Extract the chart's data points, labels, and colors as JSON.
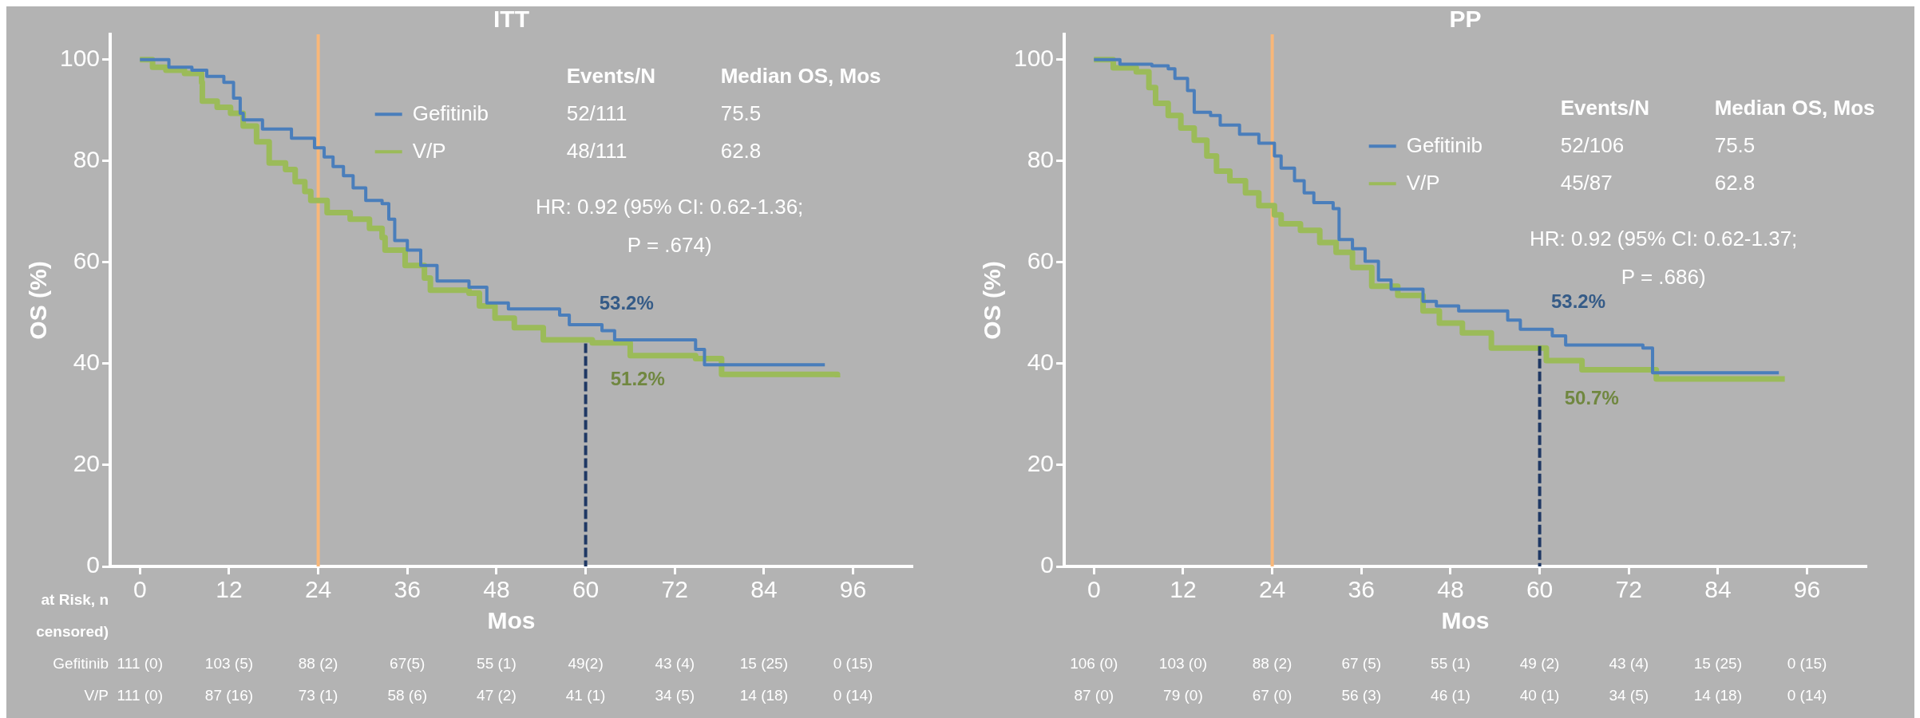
{
  "chart_data": [
    {
      "type": "step",
      "title": "ITT",
      "xlabel": "Mos",
      "ylabel": "OS (%)",
      "xlim": [
        -4,
        104
      ],
      "ylim": [
        0,
        105
      ],
      "xticks": [
        0,
        12,
        24,
        36,
        48,
        60,
        72,
        84,
        96
      ],
      "yticks": [
        0,
        20,
        40,
        60,
        80,
        100
      ],
      "grid": false,
      "legend": "top",
      "series": [
        {
          "name": "Gefitinib",
          "color": "#4a7ebb",
          "x": [
            0,
            3.9,
            7,
            9,
            11.3,
            12.6,
            13.5,
            13.9,
            16.5,
            20.4,
            23.5,
            24.8,
            26,
            27.4,
            28.7,
            30.4,
            32.6,
            33.5,
            34.3,
            36,
            37.8,
            40,
            44.3,
            46.7,
            49.6,
            56.5,
            57.8,
            62.2,
            63.9,
            74.8,
            76,
            92.2
          ],
          "values": [
            100,
            98.5,
            97.9,
            96.7,
            95.5,
            92.4,
            89.4,
            88.1,
            86.3,
            84.5,
            82.6,
            80.8,
            78.9,
            77.1,
            74.7,
            72.2,
            71.6,
            68.5,
            64.3,
            62.4,
            59.4,
            56.3,
            55.1,
            52,
            50.8,
            49.6,
            47.7,
            46.5,
            44.7,
            42.8,
            39.8,
            39.8
          ]
        },
        {
          "name": "V/P",
          "color": "#9bbb59",
          "x": [
            0,
            1.7,
            3.5,
            6,
            8.3,
            8.4,
            10.4,
            12.2,
            13.9,
            15.7,
            17.4,
            19.6,
            20.9,
            22.2,
            23,
            25.2,
            28.3,
            30.9,
            32.6,
            33,
            35.7,
            38.3,
            39.1,
            44.3,
            45.7,
            47.8,
            50.4,
            54.3,
            60.9,
            66,
            74.8,
            78.3,
            93.9
          ],
          "values": [
            100,
            98.5,
            97.9,
            97.3,
            95.5,
            91.8,
            90.6,
            89.4,
            86.9,
            83.8,
            79.6,
            78.3,
            75.9,
            74,
            72.2,
            69.8,
            68.5,
            66.7,
            64.9,
            62.4,
            59.4,
            56.9,
            54.5,
            53.9,
            51.4,
            49,
            47.1,
            44.7,
            44.1,
            41.6,
            41,
            37.9,
            37.3
          ]
        },
        {
          "type": "line",
          "color": "#1f3864",
          "line_style": "dashed",
          "x": [
            60,
            60
          ],
          "values": [
            44,
            0
          ]
        }
      ],
      "ref_lines": [
        {
          "axis": "x",
          "value": 24,
          "color": "#f8b779"
        }
      ],
      "annotations": [
        "Events/N",
        "Median OS, Mos",
        "52/111",
        "75.5",
        "48/111",
        "62.8",
        "HR: 0.92 (95% CI: 0.62-1.36;",
        "P = .674)",
        "53.2%",
        "51.2%",
        "at Risk, n",
        "censored)",
        "Gefitinib",
        "V/P",
        "111 (0)",
        "103 (5)",
        "88 (2)",
        "67(5)",
        "55 (1)",
        "49(2)",
        "43 (4)",
        "15 (25)",
        "0 (15)",
        "111 (0)",
        "87 (16)",
        "73 (1)",
        "58 (6)",
        "47 (2)",
        "41 (1)",
        "34 (5)",
        "14 (18)",
        "0 (14)"
      ]
    },
    {
      "type": "step",
      "title": "PP",
      "xlabel": "Mos",
      "ylabel": "OS (%)",
      "xlim": [
        -4,
        104
      ],
      "ylim": [
        0,
        105
      ],
      "xticks": [
        0,
        12,
        24,
        36,
        48,
        60,
        72,
        84,
        96
      ],
      "yticks": [
        0,
        20,
        40,
        60,
        80,
        100
      ],
      "grid": false,
      "legend": "top",
      "series": [
        {
          "name": "Gefitinib",
          "color": "#4a7ebb",
          "x": [
            0,
            3.5,
            7.8,
            10,
            10.9,
            12.6,
            13.5,
            15.7,
            17,
            19.6,
            22.2,
            24.3,
            25.2,
            27,
            28.3,
            29.6,
            32.2,
            33,
            34.8,
            36.5,
            38.3,
            40,
            44.3,
            46.1,
            49.1,
            55.7,
            57.4,
            61.7,
            63.5,
            73.9,
            75.2,
            92.2
          ],
          "values": [
            100,
            99.1,
            98.8,
            98.2,
            96.3,
            93.9,
            89.6,
            89,
            87.1,
            85.3,
            83.5,
            81,
            78.6,
            76.1,
            73.7,
            71.8,
            70.6,
            64.5,
            62.7,
            60.2,
            56.5,
            54.7,
            52.3,
            51.4,
            50.4,
            48.6,
            46.8,
            45.5,
            43.7,
            43.1,
            38.2,
            38.2
          ]
        },
        {
          "name": "V/P",
          "color": "#9bbb59",
          "x": [
            0,
            2.6,
            5.7,
            7.4,
            8.3,
            10,
            11.7,
            13.5,
            15.2,
            16.5,
            18.3,
            20.4,
            22.2,
            24.3,
            25.2,
            27.8,
            30.4,
            32.6,
            34.8,
            37.4,
            40.9,
            44.3,
            46.5,
            49.6,
            53.5,
            60.9,
            65.7,
            75.7,
            93
          ],
          "values": [
            100,
            98.4,
            97.6,
            94.5,
            91.4,
            89,
            86.5,
            84.1,
            81,
            78,
            76.1,
            73.7,
            71.2,
            69.4,
            67.6,
            66.3,
            63.9,
            62,
            59,
            55.3,
            53.5,
            50.4,
            48,
            46.1,
            43.1,
            40.6,
            38.8,
            37,
            37
          ]
        },
        {
          "type": "line",
          "color": "#1f3864",
          "line_style": "dashed",
          "x": [
            60,
            60
          ],
          "values": [
            43.5,
            0
          ]
        }
      ],
      "ref_lines": [
        {
          "axis": "x",
          "value": 24,
          "color": "#f8b779"
        }
      ],
      "annotations": [
        "Events/N",
        "Median OS, Mos",
        "52/106",
        "75.5",
        "45/87",
        "62.8",
        "HR: 0.92 (95% CI: 0.62-1.37;",
        "P = .686)",
        "53.2%",
        "50.7%",
        "106 (0)",
        "103 (0)",
        "88 (2)",
        "67 (5)",
        "55 (1)",
        "49 (2)",
        "43 (4)",
        "15 (25)",
        "0 (15)",
        "87 (0)",
        "79 (0)",
        "67 (0)",
        "56 (3)",
        "46 (1)",
        "40 (1)",
        "34 (5)",
        "14 (18)",
        "0 (14)"
      ]
    }
  ]
}
